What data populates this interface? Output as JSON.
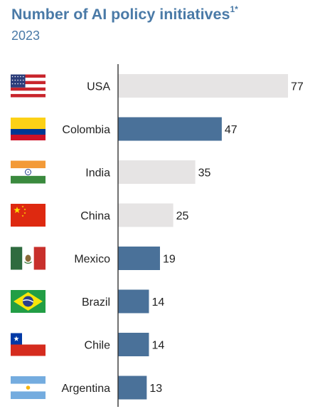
{
  "header": {
    "title": "Number of AI policy initiatives",
    "title_superscript": "1*",
    "subtitle": "2023"
  },
  "colors": {
    "highlight_bar": "#4a7199",
    "default_bar": "#e6e4e4",
    "axis": "#333333",
    "title": "#4a7aa7"
  },
  "chart_data": {
    "type": "bar",
    "orientation": "horizontal",
    "categories": [
      "USA",
      "Colombia",
      "India",
      "China",
      "Mexico",
      "Brazil",
      "Chile",
      "Argentina"
    ],
    "values": [
      77,
      47,
      35,
      25,
      19,
      14,
      14,
      13
    ],
    "highlighted": [
      false,
      true,
      false,
      false,
      true,
      true,
      true,
      true
    ],
    "flags": [
      "usa-flag-icon",
      "colombia-flag-icon",
      "india-flag-icon",
      "china-flag-icon",
      "mexico-flag-icon",
      "brazil-flag-icon",
      "chile-flag-icon",
      "argentina-flag-icon"
    ],
    "data_labels": true,
    "xlim": [
      0,
      77
    ],
    "grid": false,
    "title": "Number of AI policy initiatives",
    "subtitle": "2023"
  }
}
